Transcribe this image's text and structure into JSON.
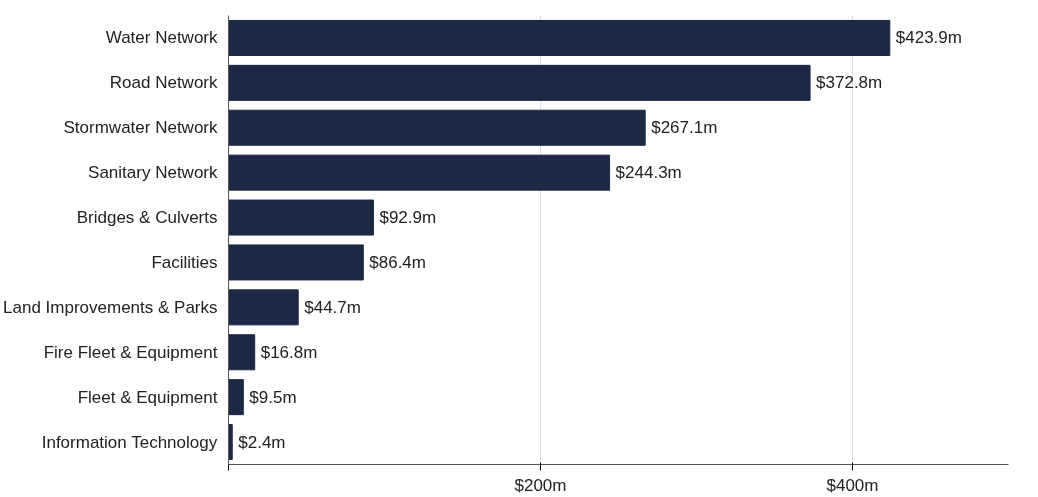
{
  "chart_data": {
    "type": "bar",
    "orientation": "horizontal",
    "categories": [
      "Water Network",
      "Road Network",
      "Stormwater Network",
      "Sanitary Network",
      "Bridges & Culverts",
      "Facilities",
      "Land Improvements & Parks",
      "Fire Fleet & Equipment",
      "Fleet & Equipment",
      "Information Technology"
    ],
    "values": [
      423.9,
      372.8,
      267.1,
      244.3,
      92.9,
      86.4,
      44.7,
      16.8,
      9.5,
      2.4
    ],
    "value_labels": [
      "$423.9m",
      "$372.8m",
      "$267.1m",
      "$244.3m",
      "$92.9m",
      "$86.4m",
      "$44.7m",
      "$16.8m",
      "$9.5m",
      "$2.4m"
    ],
    "color": "#1c2946",
    "xlim": [
      0,
      500
    ],
    "xticks": [
      {
        "value": 0,
        "label": null
      },
      {
        "value": 200,
        "label": "$200m"
      },
      {
        "value": 400,
        "label": "$400m"
      }
    ],
    "grid": "x"
  }
}
